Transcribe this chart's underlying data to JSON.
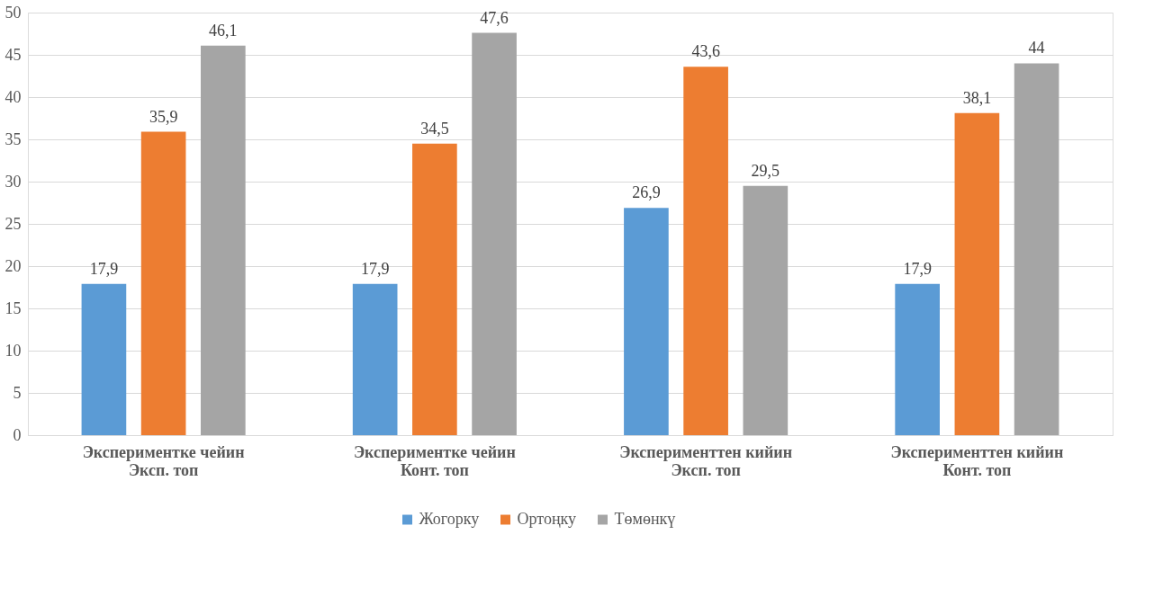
{
  "chart_data": {
    "type": "bar",
    "categories": [
      "Экспериментке чейин\nЭксп. топ",
      "Экспериментке чейин\nКонт. топ",
      "Эксперименттен кийин\nЭксп. топ",
      "Эксперименттен кийин\nКонт. топ"
    ],
    "series": [
      {
        "name": "Жогорку",
        "color": "#5b9bd5",
        "values": [
          17.9,
          17.9,
          26.9,
          17.9
        ],
        "value_labels": [
          "17,9",
          "17,9",
          "26,9",
          "17,9"
        ]
      },
      {
        "name": "Ортоңку",
        "color": "#ed7d31",
        "values": [
          35.9,
          34.5,
          43.6,
          38.1
        ],
        "value_labels": [
          "35,9",
          "34,5",
          "43,6",
          "38,1"
        ]
      },
      {
        "name": "Төмөнкү",
        "color": "#a5a5a5",
        "values": [
          46.1,
          47.6,
          29.5,
          44
        ],
        "value_labels": [
          "46,1",
          "47,6",
          "29,5",
          "44"
        ]
      }
    ],
    "ylim": [
      0,
      50
    ],
    "yticks": [
      0,
      5,
      10,
      15,
      20,
      25,
      30,
      35,
      40,
      45,
      50
    ],
    "grid": "y",
    "legend": "bottom"
  }
}
